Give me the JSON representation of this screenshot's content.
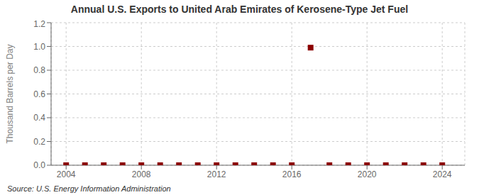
{
  "chart_data": {
    "type": "scatter",
    "title": "Annual U.S. Exports to United Arab Emirates of Kerosene-Type Jet Fuel",
    "ylabel": "Thousand Barrels per Day",
    "annotations": [
      "Source: U.S. Energy Information Administration"
    ],
    "x": [
      2004,
      2005,
      2006,
      2007,
      2008,
      2009,
      2010,
      2011,
      2012,
      2013,
      2014,
      2015,
      2016,
      2017,
      2018,
      2019,
      2020,
      2021,
      2022,
      2023,
      2024
    ],
    "values": [
      0.0,
      0.0,
      0.0,
      0.0,
      0.0,
      0.0,
      0.0,
      0.0,
      0.0,
      0.0,
      0.0,
      0.0,
      0.0,
      0.99,
      0.0,
      0.0,
      0.0,
      0.0,
      0.0,
      0.0,
      0.0
    ],
    "color": "#8b0000",
    "marker": "square",
    "xlim": [
      2003.2,
      2025.2
    ],
    "xticks": [
      2004,
      2008,
      2012,
      2016,
      2020,
      2024
    ],
    "ylim": [
      0.0,
      1.2
    ],
    "yticks": [
      {
        "value": 0.0,
        "label": "0.0"
      },
      0.2,
      0.4,
      0.6,
      0.8,
      {
        "value": 1.0,
        "label": "1.0"
      },
      1.2
    ],
    "grid": true
  }
}
